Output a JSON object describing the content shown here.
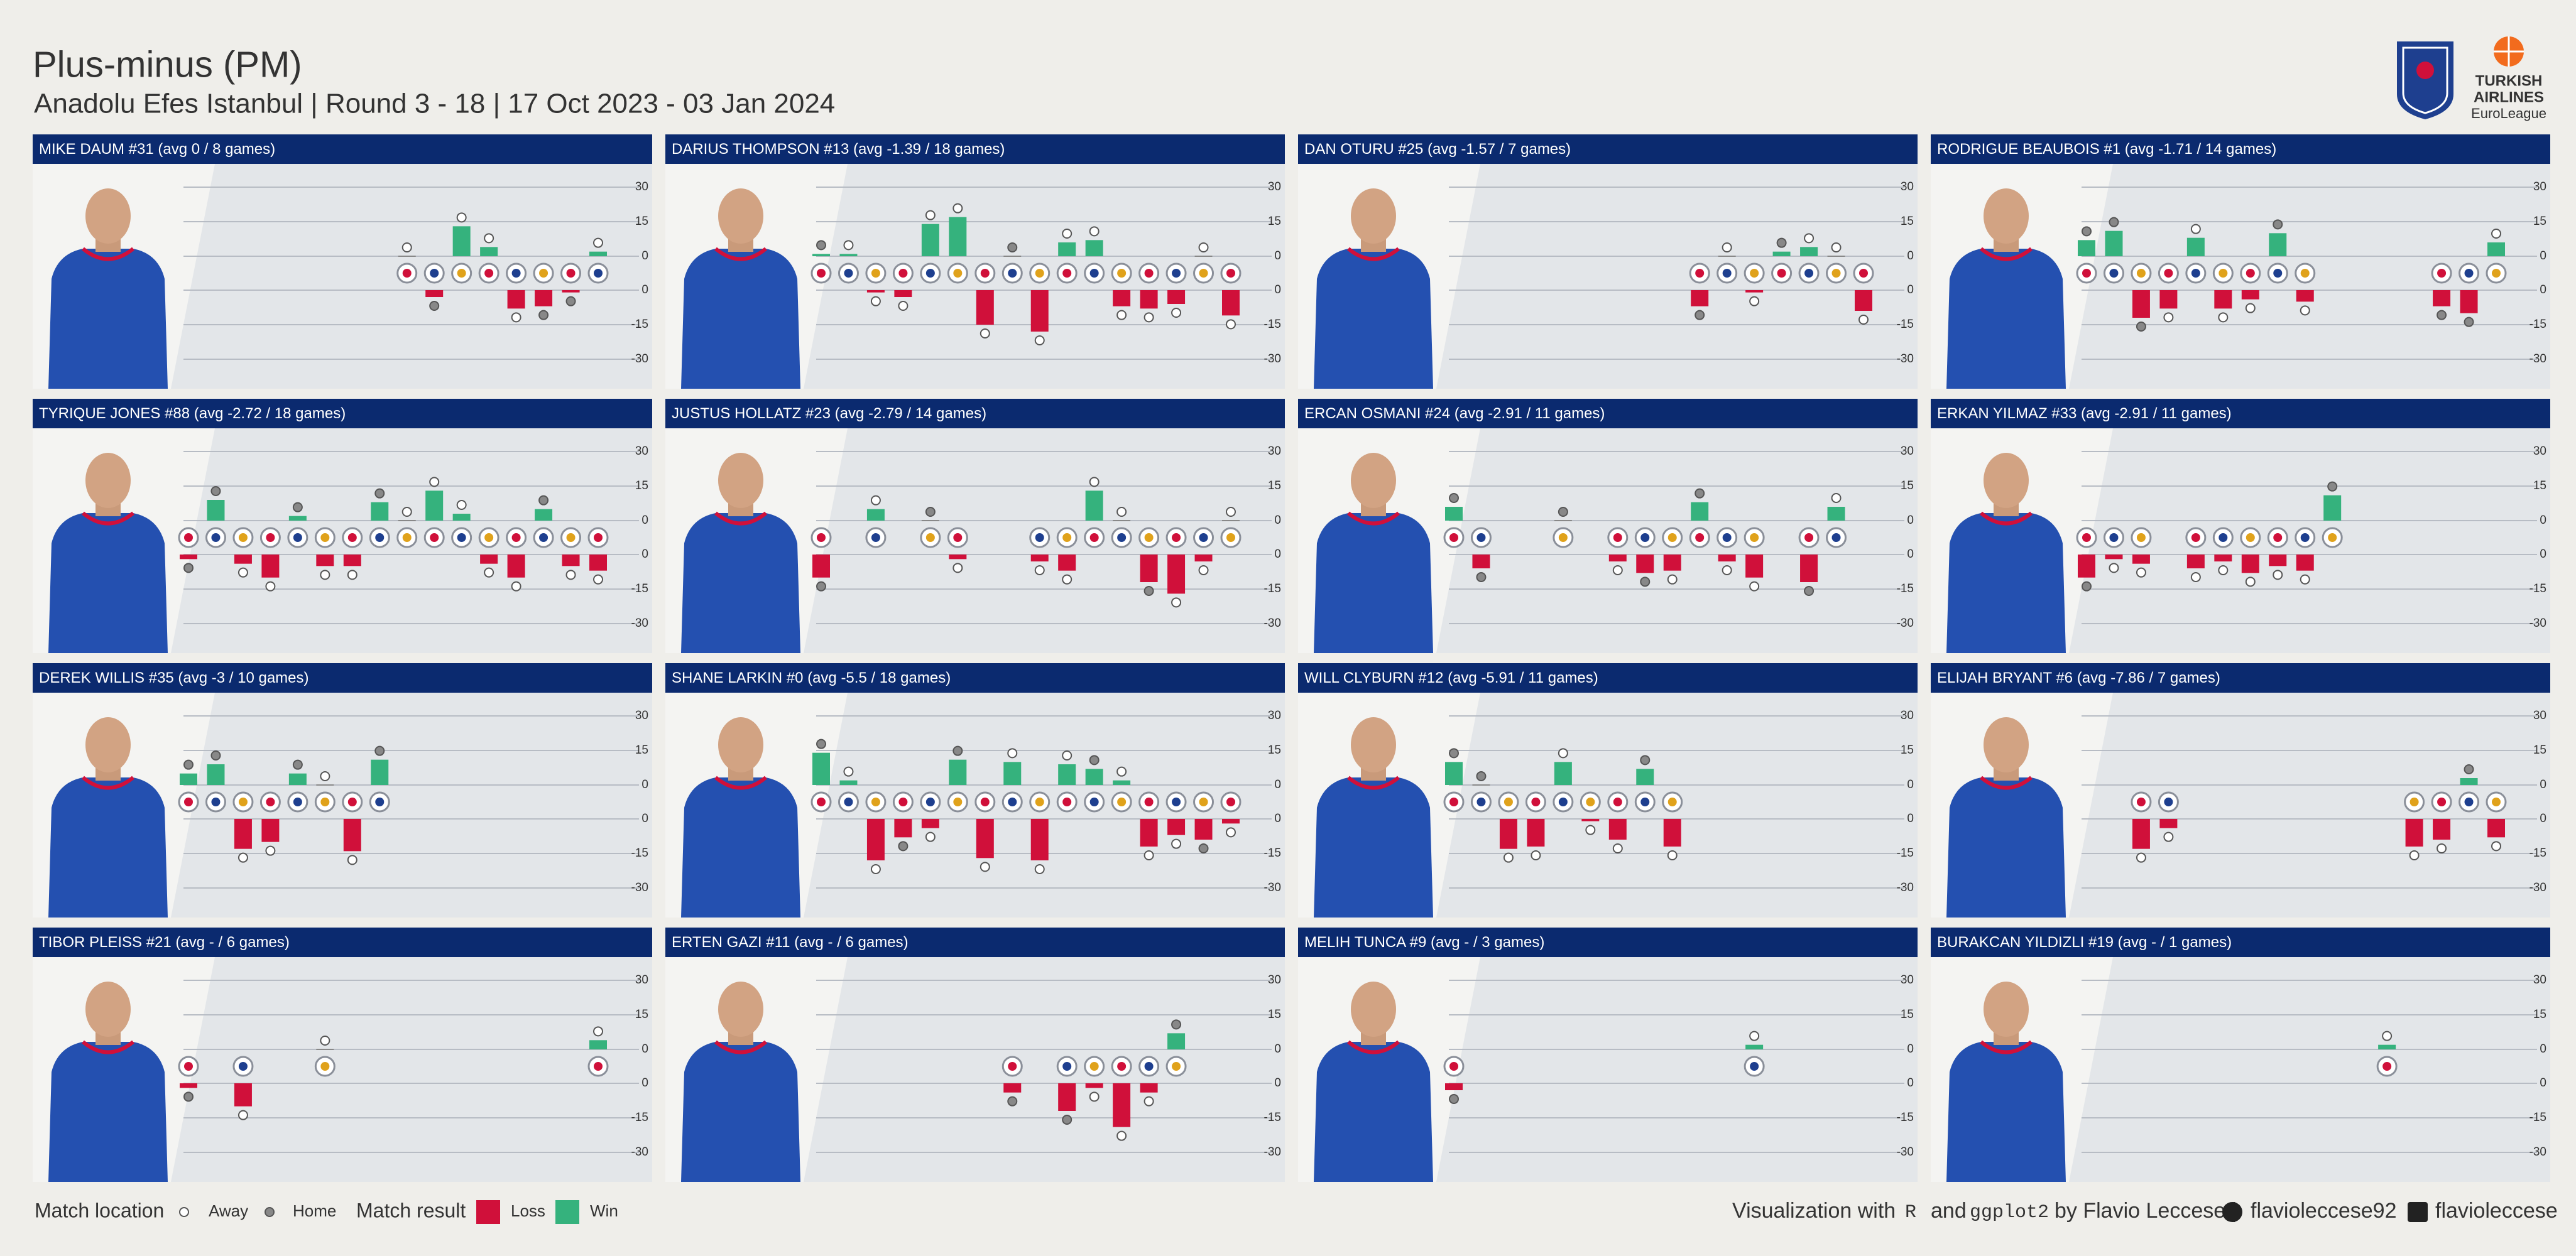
{
  "header": {
    "title": "Plus-minus (PM)",
    "subtitle": "Anadolu Efes Istanbul | Round 3 - 18 | 17 Oct 2023 - 03 Jan 2024",
    "brand": [
      "TURKISH",
      "AIRLINES",
      "EuroLeague"
    ]
  },
  "colors": {
    "loss": "#d0103a",
    "win": "#35b27d",
    "header": "#0b2a6f"
  },
  "chart_data": [
    {
      "type": "bar",
      "title": "MIKE DAUM #31 (avg 0 / 8 games)",
      "x": [
        11,
        12,
        13,
        14,
        15,
        16,
        17,
        18
      ],
      "values": [
        0,
        -3,
        13,
        4,
        -8,
        -7,
        -1,
        2
      ],
      "location": [
        "Away",
        "Home",
        "Away",
        "Away",
        "Away",
        "Home",
        "Home",
        "Away"
      ],
      "xlim": [
        3,
        18
      ],
      "ylim": [
        -30,
        30
      ],
      "yticks": [
        30,
        15,
        0,
        -15,
        -30
      ]
    },
    {
      "type": "bar",
      "title": "DARIUS THOMPSON #13 (avg -1.39 / 18 games)",
      "x": [
        3,
        4,
        5,
        6,
        7,
        8,
        9,
        10,
        11,
        12,
        13,
        14,
        15,
        16,
        17,
        18
      ],
      "values": [
        1,
        1,
        -1,
        -3,
        14,
        17,
        -15,
        0,
        -18,
        6,
        7,
        -7,
        -8,
        -6,
        0,
        -11
      ],
      "location": [
        "Home",
        "Away",
        "Away",
        "Away",
        "Away",
        "Away",
        "Away",
        "Home",
        "Away",
        "Away",
        "Away",
        "Away",
        "Away",
        "Away",
        "Away",
        "Away"
      ],
      "xlim": [
        3,
        18
      ],
      "ylim": [
        -30,
        30
      ],
      "yticks": [
        30,
        15,
        0,
        -15,
        -30
      ]
    },
    {
      "type": "bar",
      "title": "DAN OTURU #25 (avg -1.57 / 7 games)",
      "x": [
        12,
        13,
        14,
        15,
        16,
        17,
        18
      ],
      "values": [
        -7,
        0,
        -1,
        2,
        4,
        0,
        -9
      ],
      "location": [
        "Home",
        "Away",
        "Away",
        "Home",
        "Away",
        "Away",
        "Away"
      ],
      "xlim": [
        3,
        18
      ],
      "ylim": [
        -30,
        30
      ],
      "yticks": [
        30,
        15,
        0,
        -15,
        -30
      ]
    },
    {
      "type": "bar",
      "title": "RODRIGUE BEAUBOIS #1 (avg -1.71 / 14 games)",
      "x": [
        3,
        4,
        5,
        6,
        7,
        8,
        9,
        10,
        11,
        16,
        17,
        18
      ],
      "values": [
        7,
        11,
        -12,
        -8,
        8,
        -8,
        -4,
        10,
        -5,
        -7,
        -10,
        6
      ],
      "location": [
        "Home",
        "Home",
        "Home",
        "Away",
        "Away",
        "Away",
        "Away",
        "Home",
        "Away",
        "Home",
        "Home",
        "Away"
      ],
      "xlim": [
        3,
        18
      ],
      "ylim": [
        -30,
        30
      ],
      "yticks": [
        30,
        15,
        0,
        -15,
        -30
      ]
    },
    {
      "type": "bar",
      "title": "TYRIQUE JONES #88 (avg -2.72 / 18 games)",
      "x": [
        3,
        4,
        5,
        6,
        7,
        8,
        9,
        10,
        11,
        12,
        13,
        14,
        15,
        16,
        17,
        18
      ],
      "values": [
        -2,
        9,
        -4,
        -10,
        2,
        -5,
        -5,
        8,
        0,
        13,
        3,
        -4,
        -10,
        5,
        -5,
        -7
      ],
      "location": [
        "Home",
        "Home",
        "Away",
        "Away",
        "Home",
        "Away",
        "Away",
        "Home",
        "Away",
        "Away",
        "Away",
        "Away",
        "Away",
        "Home",
        "Away",
        "Away"
      ],
      "xlim": [
        3,
        18
      ],
      "ylim": [
        -30,
        30
      ],
      "yticks": [
        30,
        15,
        0,
        -15,
        -30
      ]
    },
    {
      "type": "bar",
      "title": "JUSTUS HOLLATZ #23 (avg -2.79 / 14 games)",
      "x": [
        3,
        5,
        7,
        8,
        11,
        12,
        13,
        14,
        15,
        16,
        17,
        18
      ],
      "values": [
        -10,
        5,
        0,
        -2,
        -3,
        -7,
        13,
        0,
        -12,
        -17,
        -3,
        0
      ],
      "location": [
        "Home",
        "Away",
        "Home",
        "Away",
        "Away",
        "Away",
        "Away",
        "Away",
        "Home",
        "Away",
        "Away",
        "Away"
      ],
      "xlim": [
        3,
        18
      ],
      "ylim": [
        -30,
        30
      ],
      "yticks": [
        30,
        15,
        0,
        -15,
        -30
      ]
    },
    {
      "type": "bar",
      "title": "ERCAN OSMANI #24 (avg -2.91 / 11 games)",
      "x": [
        3,
        4,
        7,
        9,
        10,
        11,
        12,
        13,
        14,
        16,
        17
      ],
      "values": [
        6,
        -6,
        0,
        -3,
        -8,
        -7,
        8,
        -3,
        -10,
        -12,
        6
      ],
      "location": [
        "Home",
        "Home",
        "Home",
        "Away",
        "Home",
        "Away",
        "Home",
        "Away",
        "Away",
        "Home",
        "Away"
      ],
      "xlim": [
        3,
        18
      ],
      "ylim": [
        -30,
        30
      ],
      "yticks": [
        30,
        15,
        0,
        -15,
        -30
      ]
    },
    {
      "type": "bar",
      "title": "ERKAN YILMAZ #33 (avg -2.91 / 11 games)",
      "x": [
        3,
        4,
        5,
        7,
        8,
        9,
        10,
        11,
        12
      ],
      "values": [
        -10,
        -2,
        -4,
        -6,
        -3,
        -8,
        -5,
        -7,
        11
      ],
      "location": [
        "Home",
        "Away",
        "Away",
        "Away",
        "Away",
        "Away",
        "Away",
        "Away",
        "Home"
      ],
      "xlim": [
        3,
        18
      ],
      "ylim": [
        -30,
        30
      ],
      "yticks": [
        30,
        15,
        0,
        -15,
        -30
      ]
    },
    {
      "type": "bar",
      "title": "DEREK WILLIS #35 (avg -3 / 10 games)",
      "x": [
        3,
        4,
        5,
        6,
        7,
        8,
        9,
        10
      ],
      "values": [
        5,
        9,
        -13,
        -10,
        5,
        0,
        -14,
        11
      ],
      "location": [
        "Home",
        "Home",
        "Away",
        "Away",
        "Home",
        "Away",
        "Away",
        "Home"
      ],
      "xlim": [
        3,
        18
      ],
      "ylim": [
        -30,
        30
      ],
      "yticks": [
        30,
        15,
        0,
        -15,
        -30
      ]
    },
    {
      "type": "bar",
      "title": "SHANE LARKIN #0 (avg -5.5 / 18 games)",
      "x": [
        3,
        4,
        5,
        6,
        7,
        8,
        9,
        10,
        11,
        12,
        13,
        14,
        15,
        16,
        17,
        18
      ],
      "values": [
        14,
        2,
        -18,
        -8,
        -4,
        11,
        -17,
        10,
        -18,
        9,
        7,
        2,
        -12,
        -7,
        -9,
        -2
      ],
      "location": [
        "Home",
        "Away",
        "Away",
        "Home",
        "Away",
        "Home",
        "Away",
        "Away",
        "Away",
        "Away",
        "Home",
        "Away",
        "Away",
        "Away",
        "Home",
        "Away"
      ],
      "xlim": [
        3,
        18
      ],
      "ylim": [
        -30,
        30
      ],
      "yticks": [
        30,
        15,
        0,
        -15,
        -30
      ]
    },
    {
      "type": "bar",
      "title": "WILL CLYBURN #12 (avg -5.91 / 11 games)",
      "x": [
        3,
        4,
        5,
        6,
        7,
        8,
        9,
        10,
        11
      ],
      "values": [
        10,
        0,
        -13,
        -12,
        10,
        -1,
        -9,
        7,
        -12
      ],
      "location": [
        "Home",
        "Home",
        "Away",
        "Away",
        "Away",
        "Away",
        "Away",
        "Home",
        "Away"
      ],
      "xlim": [
        3,
        18
      ],
      "ylim": [
        -30,
        30
      ],
      "yticks": [
        30,
        15,
        0,
        -15,
        -30
      ]
    },
    {
      "type": "bar",
      "title": "ELIJAH BRYANT #6 (avg -7.86 / 7 games)",
      "x": [
        5,
        6,
        15,
        16,
        17,
        18
      ],
      "values": [
        -13,
        -4,
        -12,
        -9,
        3,
        -8
      ],
      "location": [
        "Away",
        "Away",
        "Away",
        "Away",
        "Home",
        "Away"
      ],
      "xlim": [
        3,
        18
      ],
      "ylim": [
        -30,
        30
      ],
      "yticks": [
        30,
        15,
        0,
        -15,
        -30
      ]
    },
    {
      "type": "bar",
      "title": "TIBOR PLEISS #21 (avg - / 6 games)",
      "x": [
        3,
        5,
        8,
        18
      ],
      "values": [
        -2,
        -10,
        0,
        4
      ],
      "location": [
        "Home",
        "Away",
        "Away",
        "Away"
      ],
      "xlim": [
        3,
        18
      ],
      "ylim": [
        -30,
        30
      ],
      "yticks": [
        30,
        15,
        0,
        -15,
        -30
      ]
    },
    {
      "type": "bar",
      "title": "ERTEN GAZI #11 (avg - / 6 games)",
      "x": [
        10,
        12,
        13,
        14,
        15,
        16
      ],
      "values": [
        -4,
        -12,
        -2,
        -19,
        -4,
        7
      ],
      "location": [
        "Home",
        "Home",
        "Away",
        "Away",
        "Away",
        "Home"
      ],
      "xlim": [
        3,
        18
      ],
      "ylim": [
        -30,
        30
      ],
      "yticks": [
        30,
        15,
        0,
        -15,
        -30
      ]
    },
    {
      "type": "bar",
      "title": "MELIH TUNCA #9 (avg - / 3 games)",
      "x": [
        3,
        14
      ],
      "values": [
        -3,
        2
      ],
      "location": [
        "Home",
        "Away"
      ],
      "xlim": [
        3,
        18
      ],
      "ylim": [
        -30,
        30
      ],
      "yticks": [
        30,
        15,
        0,
        -15,
        -30
      ]
    },
    {
      "type": "bar",
      "title": "BURAKCAN YILDIZLI #19 (avg - / 1 games)",
      "x": [
        14
      ],
      "values": [
        2
      ],
      "location": [
        "Away"
      ],
      "xlim": [
        3,
        18
      ],
      "ylim": [
        -30,
        30
      ],
      "yticks": [
        30,
        15,
        0,
        -15,
        -30
      ]
    }
  ],
  "legend": {
    "location_title": "Match location",
    "location_labels": [
      "Away",
      "Home"
    ],
    "result_title": "Match result",
    "result_labels": [
      "Loss",
      "Win"
    ]
  },
  "footer": {
    "lead": "Visualization with",
    "r": "R",
    "and": "and",
    "ggplot2": "ggplot2",
    "by": "by Flavio Leccese |",
    "github": "flavioleccese92",
    "linkedin": "flavioleccese"
  }
}
